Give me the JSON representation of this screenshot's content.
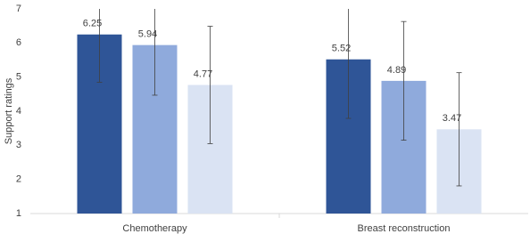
{
  "chart_data": {
    "type": "bar",
    "categories": [
      "Chemotherapy",
      "Breast reconstruction"
    ],
    "series": [
      {
        "color": "#2f5597",
        "values": [
          6.25,
          5.52
        ],
        "errors": [
          1.4,
          1.73
        ]
      },
      {
        "color": "#8faadc",
        "values": [
          5.94,
          4.89
        ],
        "errors": [
          1.47,
          1.74
        ]
      },
      {
        "color": "#dae3f3",
        "values": [
          4.77,
          3.47
        ],
        "errors": [
          1.72,
          1.66
        ]
      }
    ],
    "ylabel": "Support ratings",
    "ylim": [
      1,
      7
    ],
    "yticks": [
      1,
      2,
      3,
      4,
      5,
      6,
      7
    ],
    "grid": false
  }
}
